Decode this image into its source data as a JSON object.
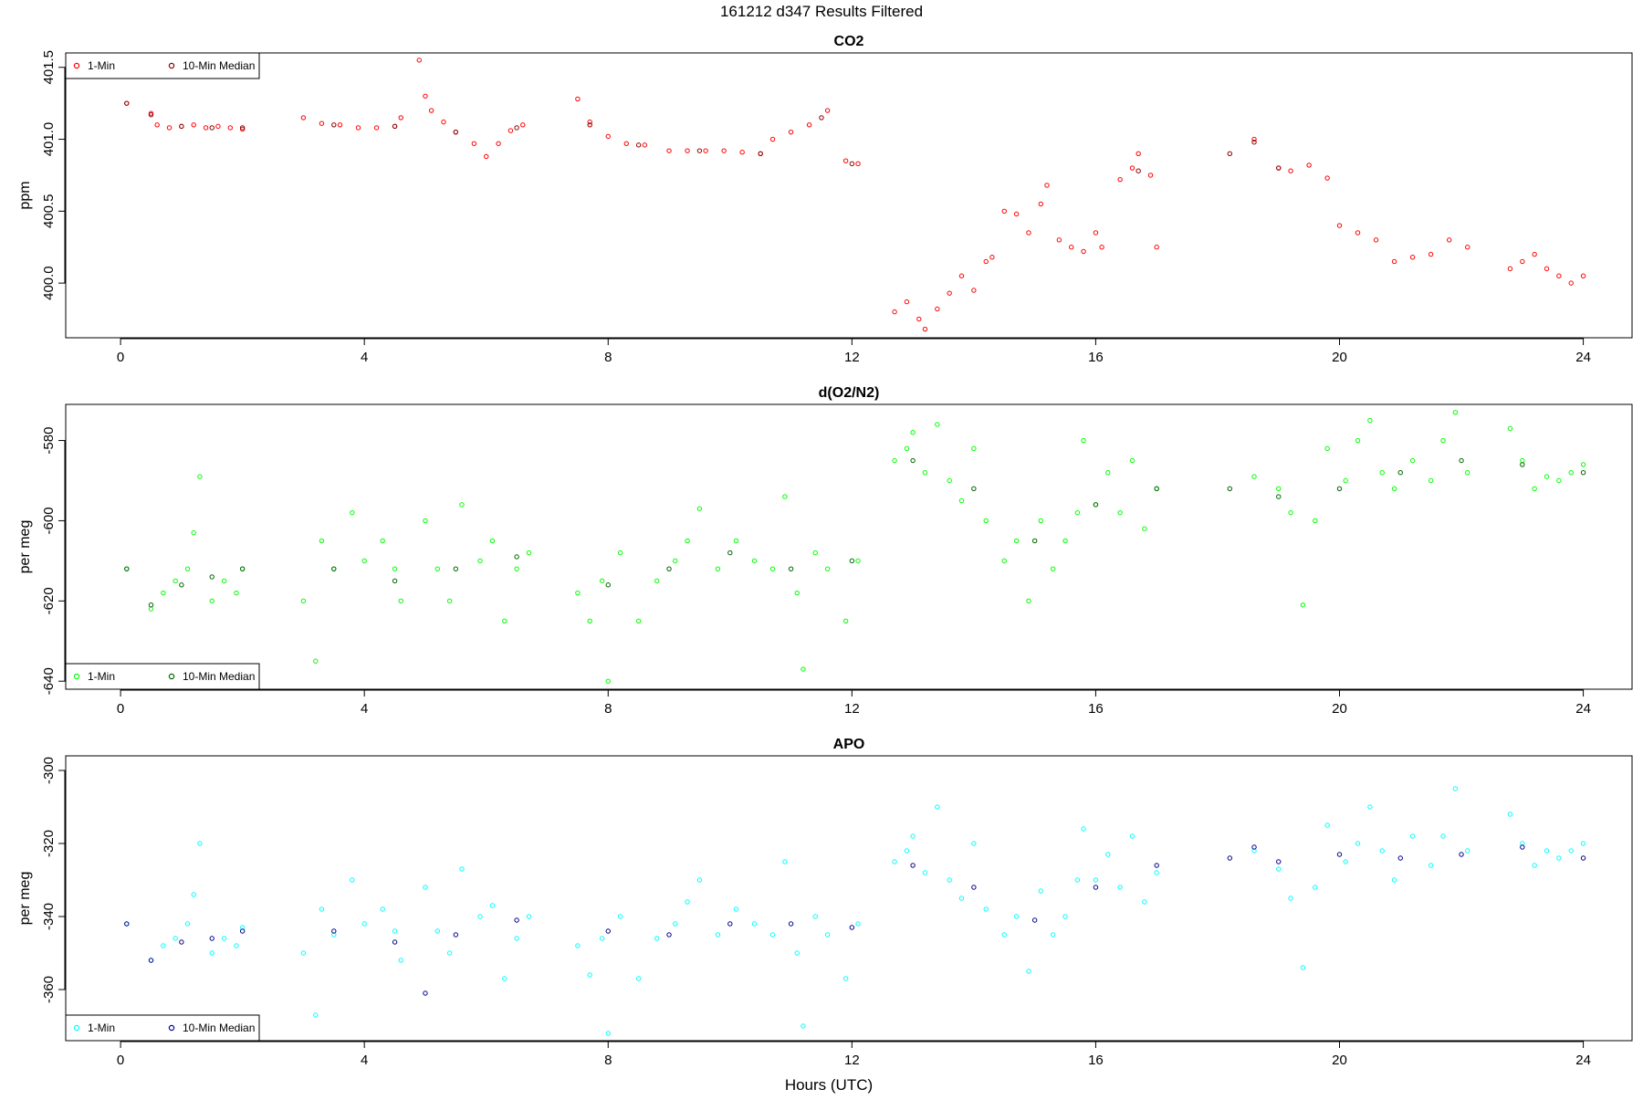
{
  "figure": {
    "title": "161212   d347   Results Filtered",
    "xlabel": "Hours (UTC)"
  },
  "chart_data": [
    {
      "type": "scatter",
      "title": "CO2",
      "xlabel": "",
      "ylabel": "ppm",
      "xlim": [
        -0.9,
        24.8
      ],
      "ylim": [
        399.62,
        401.6
      ],
      "xticks": [
        0,
        4,
        8,
        12,
        16,
        20,
        24
      ],
      "yticks": [
        400.0,
        400.5,
        401.0,
        401.5
      ],
      "ytick_labels": [
        "400.0",
        "400.5",
        "401.0",
        "401.5"
      ],
      "legend_position": "top-left",
      "grid": false,
      "series": [
        {
          "name": "1-Min",
          "color": "#ff0000",
          "x": [
            0.1,
            0.5,
            0.6,
            0.8,
            1.0,
            1.2,
            1.4,
            1.6,
            1.8,
            2.0,
            3.0,
            3.3,
            3.6,
            3.9,
            4.2,
            4.5,
            4.6,
            4.9,
            5.0,
            5.1,
            5.3,
            5.5,
            5.8,
            6.0,
            6.2,
            6.4,
            6.6,
            7.5,
            7.7,
            8.0,
            8.3,
            8.6,
            9.0,
            9.3,
            9.6,
            9.9,
            10.2,
            10.5,
            10.7,
            11.0,
            11.3,
            11.6,
            11.9,
            12.1,
            12.7,
            12.9,
            13.1,
            13.2,
            13.4,
            13.6,
            13.8,
            14.0,
            14.2,
            14.3,
            14.5,
            14.7,
            14.9,
            15.1,
            15.2,
            15.4,
            15.6,
            15.8,
            16.0,
            16.1,
            16.4,
            16.6,
            16.7,
            16.9,
            17.0,
            18.6,
            19.0,
            19.2,
            19.5,
            19.8,
            20.0,
            20.3,
            20.6,
            20.9,
            21.2,
            21.5,
            21.8,
            22.1,
            22.8,
            23.0,
            23.2,
            23.4,
            23.6,
            23.8,
            24.0
          ],
          "y": [
            401.25,
            401.18,
            401.1,
            401.08,
            401.09,
            401.1,
            401.08,
            401.09,
            401.08,
            401.07,
            401.15,
            401.11,
            401.1,
            401.08,
            401.08,
            401.09,
            401.15,
            401.55,
            401.3,
            401.2,
            401.12,
            401.05,
            400.97,
            400.88,
            400.97,
            401.06,
            401.1,
            401.28,
            401.12,
            401.02,
            400.97,
            400.96,
            400.92,
            400.92,
            400.92,
            400.92,
            400.91,
            400.9,
            401.0,
            401.05,
            401.1,
            401.2,
            400.85,
            400.83,
            399.8,
            399.87,
            399.75,
            399.68,
            399.82,
            399.93,
            400.05,
            399.95,
            400.15,
            400.18,
            400.5,
            400.48,
            400.35,
            400.55,
            400.68,
            400.3,
            400.25,
            400.22,
            400.35,
            400.25,
            400.72,
            400.8,
            400.9,
            400.75,
            400.25,
            401.0,
            400.8,
            400.78,
            400.82,
            400.73,
            400.4,
            400.35,
            400.3,
            400.15,
            400.18,
            400.2,
            400.3,
            400.25,
            400.1,
            400.15,
            400.2,
            400.1,
            400.05,
            400.0,
            400.05
          ]
        },
        {
          "name": "10-Min Median",
          "color": "#8b0000",
          "x": [
            0.1,
            0.5,
            1.0,
            1.5,
            2.0,
            3.5,
            4.5,
            5.5,
            6.5,
            7.7,
            8.5,
            9.5,
            10.5,
            11.5,
            12.0,
            16.7,
            18.2,
            18.6,
            19.0
          ],
          "y": [
            401.25,
            401.17,
            401.09,
            401.08,
            401.08,
            401.1,
            401.09,
            401.05,
            401.08,
            401.1,
            400.96,
            400.92,
            400.9,
            401.15,
            400.83,
            400.78,
            400.9,
            400.98,
            400.8
          ]
        }
      ]
    },
    {
      "type": "scatter",
      "title": "d(O2/N2)",
      "xlabel": "",
      "ylabel": "per meg",
      "xlim": [
        -0.9,
        24.8
      ],
      "ylim": [
        -642,
        -571
      ],
      "xticks": [
        0,
        4,
        8,
        12,
        16,
        20,
        24
      ],
      "yticks": [
        -640,
        -620,
        -600,
        -580
      ],
      "ytick_labels": [
        "-640",
        "-620",
        "-600",
        "-580"
      ],
      "legend_position": "bottom-left",
      "grid": false,
      "series": [
        {
          "name": "1-Min",
          "color": "#00ff00",
          "x": [
            0.1,
            0.5,
            0.7,
            0.9,
            1.1,
            1.2,
            1.3,
            1.5,
            1.7,
            1.9,
            2.0,
            3.0,
            3.2,
            3.3,
            3.5,
            3.8,
            4.0,
            4.3,
            4.5,
            4.6,
            5.0,
            5.2,
            5.4,
            5.6,
            5.9,
            6.1,
            6.3,
            6.5,
            6.7,
            7.5,
            7.7,
            7.9,
            8.0,
            8.2,
            8.5,
            8.8,
            9.1,
            9.3,
            9.5,
            9.8,
            10.1,
            10.4,
            10.7,
            10.9,
            11.1,
            11.2,
            11.4,
            11.6,
            11.9,
            12.1,
            12.7,
            12.9,
            13.0,
            13.2,
            13.4,
            13.6,
            13.8,
            14.0,
            14.2,
            14.5,
            14.7,
            14.9,
            15.1,
            15.3,
            15.5,
            15.7,
            15.8,
            16.0,
            16.2,
            16.4,
            16.6,
            16.8,
            17.0,
            18.6,
            19.0,
            19.2,
            19.4,
            19.6,
            19.8,
            20.1,
            20.3,
            20.5,
            20.7,
            20.9,
            21.2,
            21.5,
            21.7,
            21.9,
            22.1,
            22.8,
            23.0,
            23.2,
            23.4,
            23.6,
            23.8,
            24.0
          ],
          "y": [
            -612,
            -622,
            -618,
            -615,
            -612,
            -603,
            -589,
            -620,
            -615,
            -618,
            -612,
            -620,
            -635,
            -605,
            -612,
            -598,
            -610,
            -605,
            -612,
            -620,
            -600,
            -612,
            -620,
            -596,
            -610,
            -605,
            -625,
            -612,
            -608,
            -618,
            -625,
            -615,
            -640,
            -608,
            -625,
            -615,
            -610,
            -605,
            -597,
            -612,
            -605,
            -610,
            -612,
            -594,
            -618,
            -637,
            -608,
            -612,
            -625,
            -610,
            -585,
            -582,
            -578,
            -588,
            -576,
            -590,
            -595,
            -582,
            -600,
            -610,
            -605,
            -620,
            -600,
            -612,
            -605,
            -598,
            -580,
            -596,
            -588,
            -598,
            -585,
            -602,
            -592,
            -589,
            -592,
            -598,
            -621,
            -600,
            -582,
            -590,
            -580,
            -575,
            -588,
            -592,
            -585,
            -590,
            -580,
            -573,
            -588,
            -577,
            -585,
            -592,
            -589,
            -590,
            -588,
            -586
          ]
        },
        {
          "name": "10-Min Median",
          "color": "#006400",
          "x": [
            0.1,
            0.5,
            1.0,
            1.5,
            2.0,
            3.5,
            4.5,
            5.5,
            6.5,
            8.0,
            9.0,
            10.0,
            11.0,
            12.0,
            13.0,
            14.0,
            15.0,
            16.0,
            17.0,
            18.2,
            19.0,
            20.0,
            21.0,
            22.0,
            23.0,
            24.0
          ],
          "y": [
            -612,
            -621,
            -616,
            -614,
            -612,
            -612,
            -615,
            -612,
            -609,
            -616,
            -612,
            -608,
            -612,
            -610,
            -585,
            -592,
            -605,
            -596,
            -592,
            -592,
            -594,
            -592,
            -588,
            -585,
            -586,
            -588
          ]
        }
      ]
    },
    {
      "type": "scatter",
      "title": "APO",
      "xlabel": "Hours (UTC)",
      "ylabel": "per meg",
      "xlim": [
        -0.9,
        24.8
      ],
      "ylim": [
        -374,
        -296
      ],
      "xticks": [
        0,
        4,
        8,
        12,
        16,
        20,
        24
      ],
      "yticks": [
        -360,
        -340,
        -320,
        -300
      ],
      "ytick_labels": [
        "-360",
        "-340",
        "-320",
        "-300"
      ],
      "legend_position": "bottom-left",
      "grid": false,
      "series": [
        {
          "name": "1-Min",
          "color": "#00ffff",
          "x": [
            0.1,
            0.5,
            0.7,
            0.9,
            1.1,
            1.2,
            1.3,
            1.5,
            1.7,
            1.9,
            2.0,
            3.0,
            3.2,
            3.3,
            3.5,
            3.8,
            4.0,
            4.3,
            4.5,
            4.6,
            5.0,
            5.2,
            5.4,
            5.6,
            5.9,
            6.1,
            6.3,
            6.5,
            6.7,
            7.5,
            7.7,
            7.9,
            8.0,
            8.2,
            8.5,
            8.8,
            9.1,
            9.3,
            9.5,
            9.8,
            10.1,
            10.4,
            10.7,
            10.9,
            11.1,
            11.2,
            11.4,
            11.6,
            11.9,
            12.1,
            12.7,
            12.9,
            13.0,
            13.2,
            13.4,
            13.6,
            13.8,
            14.0,
            14.2,
            14.5,
            14.7,
            14.9,
            15.1,
            15.3,
            15.5,
            15.7,
            15.8,
            16.0,
            16.2,
            16.4,
            16.6,
            16.8,
            17.0,
            18.6,
            19.0,
            19.2,
            19.4,
            19.6,
            19.8,
            20.1,
            20.3,
            20.5,
            20.7,
            20.9,
            21.2,
            21.5,
            21.7,
            21.9,
            22.1,
            22.8,
            23.0,
            23.2,
            23.4,
            23.6,
            23.8,
            24.0
          ],
          "y": [
            -342,
            -352,
            -348,
            -346,
            -342,
            -334,
            -320,
            -350,
            -346,
            -348,
            -343,
            -350,
            -367,
            -338,
            -345,
            -330,
            -342,
            -338,
            -344,
            -352,
            -332,
            -344,
            -350,
            -327,
            -340,
            -337,
            -357,
            -346,
            -340,
            -348,
            -356,
            -346,
            -372,
            -340,
            -357,
            -346,
            -342,
            -336,
            -330,
            -345,
            -338,
            -342,
            -345,
            -325,
            -350,
            -370,
            -340,
            -345,
            -357,
            -342,
            -325,
            -322,
            -318,
            -328,
            -310,
            -330,
            -335,
            -320,
            -338,
            -345,
            -340,
            -355,
            -333,
            -345,
            -340,
            -330,
            -316,
            -330,
            -323,
            -332,
            -318,
            -336,
            -328,
            -322,
            -327,
            -335,
            -354,
            -332,
            -315,
            -325,
            -320,
            -310,
            -322,
            -330,
            -318,
            -326,
            -318,
            -305,
            -322,
            -312,
            -320,
            -326,
            -322,
            -324,
            -322,
            -320
          ]
        },
        {
          "name": "10-Min Median",
          "color": "#00008b",
          "x": [
            0.1,
            0.5,
            1.0,
            1.5,
            2.0,
            3.5,
            4.5,
            5.0,
            5.5,
            6.5,
            8.0,
            9.0,
            10.0,
            11.0,
            12.0,
            13.0,
            14.0,
            15.0,
            16.0,
            17.0,
            18.2,
            18.6,
            19.0,
            20.0,
            21.0,
            22.0,
            23.0,
            24.0
          ],
          "y": [
            -342,
            -352,
            -347,
            -346,
            -344,
            -344,
            -347,
            -361,
            -345,
            -341,
            -344,
            -345,
            -342,
            -342,
            -343,
            -326,
            -332,
            -341,
            -332,
            -326,
            -324,
            -321,
            -325,
            -323,
            -324,
            -323,
            -321,
            -324
          ]
        }
      ]
    }
  ]
}
